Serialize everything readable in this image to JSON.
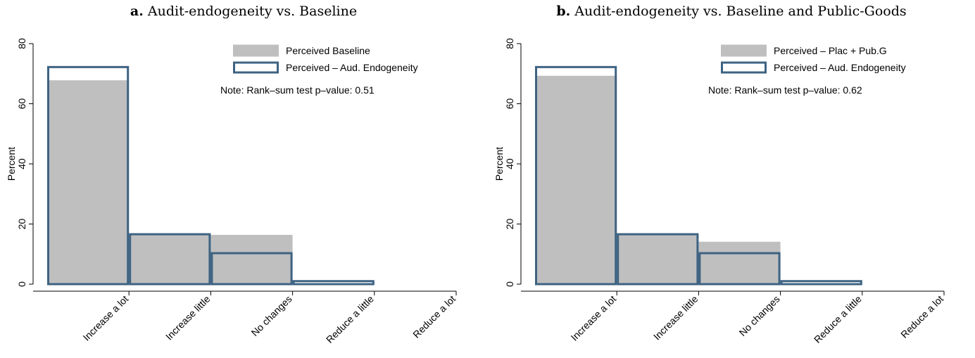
{
  "colors": {
    "gray_fill": "#bfbfbf",
    "outline": "#3e6383",
    "axis": "#000000"
  },
  "chart_data": [
    {
      "type": "bar",
      "panel_label": "a.",
      "title": "Audit-endogeneity vs. Baseline",
      "xlabel": "",
      "ylabel": "Percent",
      "ylim": [
        0,
        80
      ],
      "yticks": [
        "0",
        "20",
        "40",
        "60",
        "80"
      ],
      "categories": [
        "Increase a lot",
        "Increase little",
        "No changes",
        "Reduce a little",
        "Reduce a lot"
      ],
      "series": [
        {
          "name": "Perceived Baseline",
          "style": "filled",
          "values": [
            67.8,
            16.4,
            16.4,
            0.0,
            0.0
          ]
        },
        {
          "name": "Perceived – Aud. Endogeneity",
          "style": "outline",
          "values": [
            72.2,
            16.6,
            10.3,
            1.0,
            0.0
          ]
        }
      ],
      "note": "Note: Rank–sum test p–value: 0.51",
      "legend_position": "top-right",
      "grid": false
    },
    {
      "type": "bar",
      "panel_label": "b.",
      "title": "Audit-endogeneity vs. Baseline and Public-Goods",
      "xlabel": "",
      "ylabel": "Percent",
      "ylim": [
        0,
        80
      ],
      "yticks": [
        "0",
        "20",
        "40",
        "60",
        "80"
      ],
      "categories": [
        "Increase a lot",
        "Increase little",
        "No changes",
        "Reduce a little",
        "Reduce a lot"
      ],
      "series": [
        {
          "name": "Perceived – Plac + Pub.G",
          "style": "filled",
          "values": [
            69.3,
            16.4,
            14.1,
            0.0,
            0.0
          ]
        },
        {
          "name": "Perceived – Aud. Endogeneity",
          "style": "outline",
          "values": [
            72.2,
            16.6,
            10.3,
            1.0,
            0.0
          ]
        }
      ],
      "note": "Note: Rank–sum test p–value: 0.62",
      "legend_position": "top-right",
      "grid": false
    }
  ]
}
